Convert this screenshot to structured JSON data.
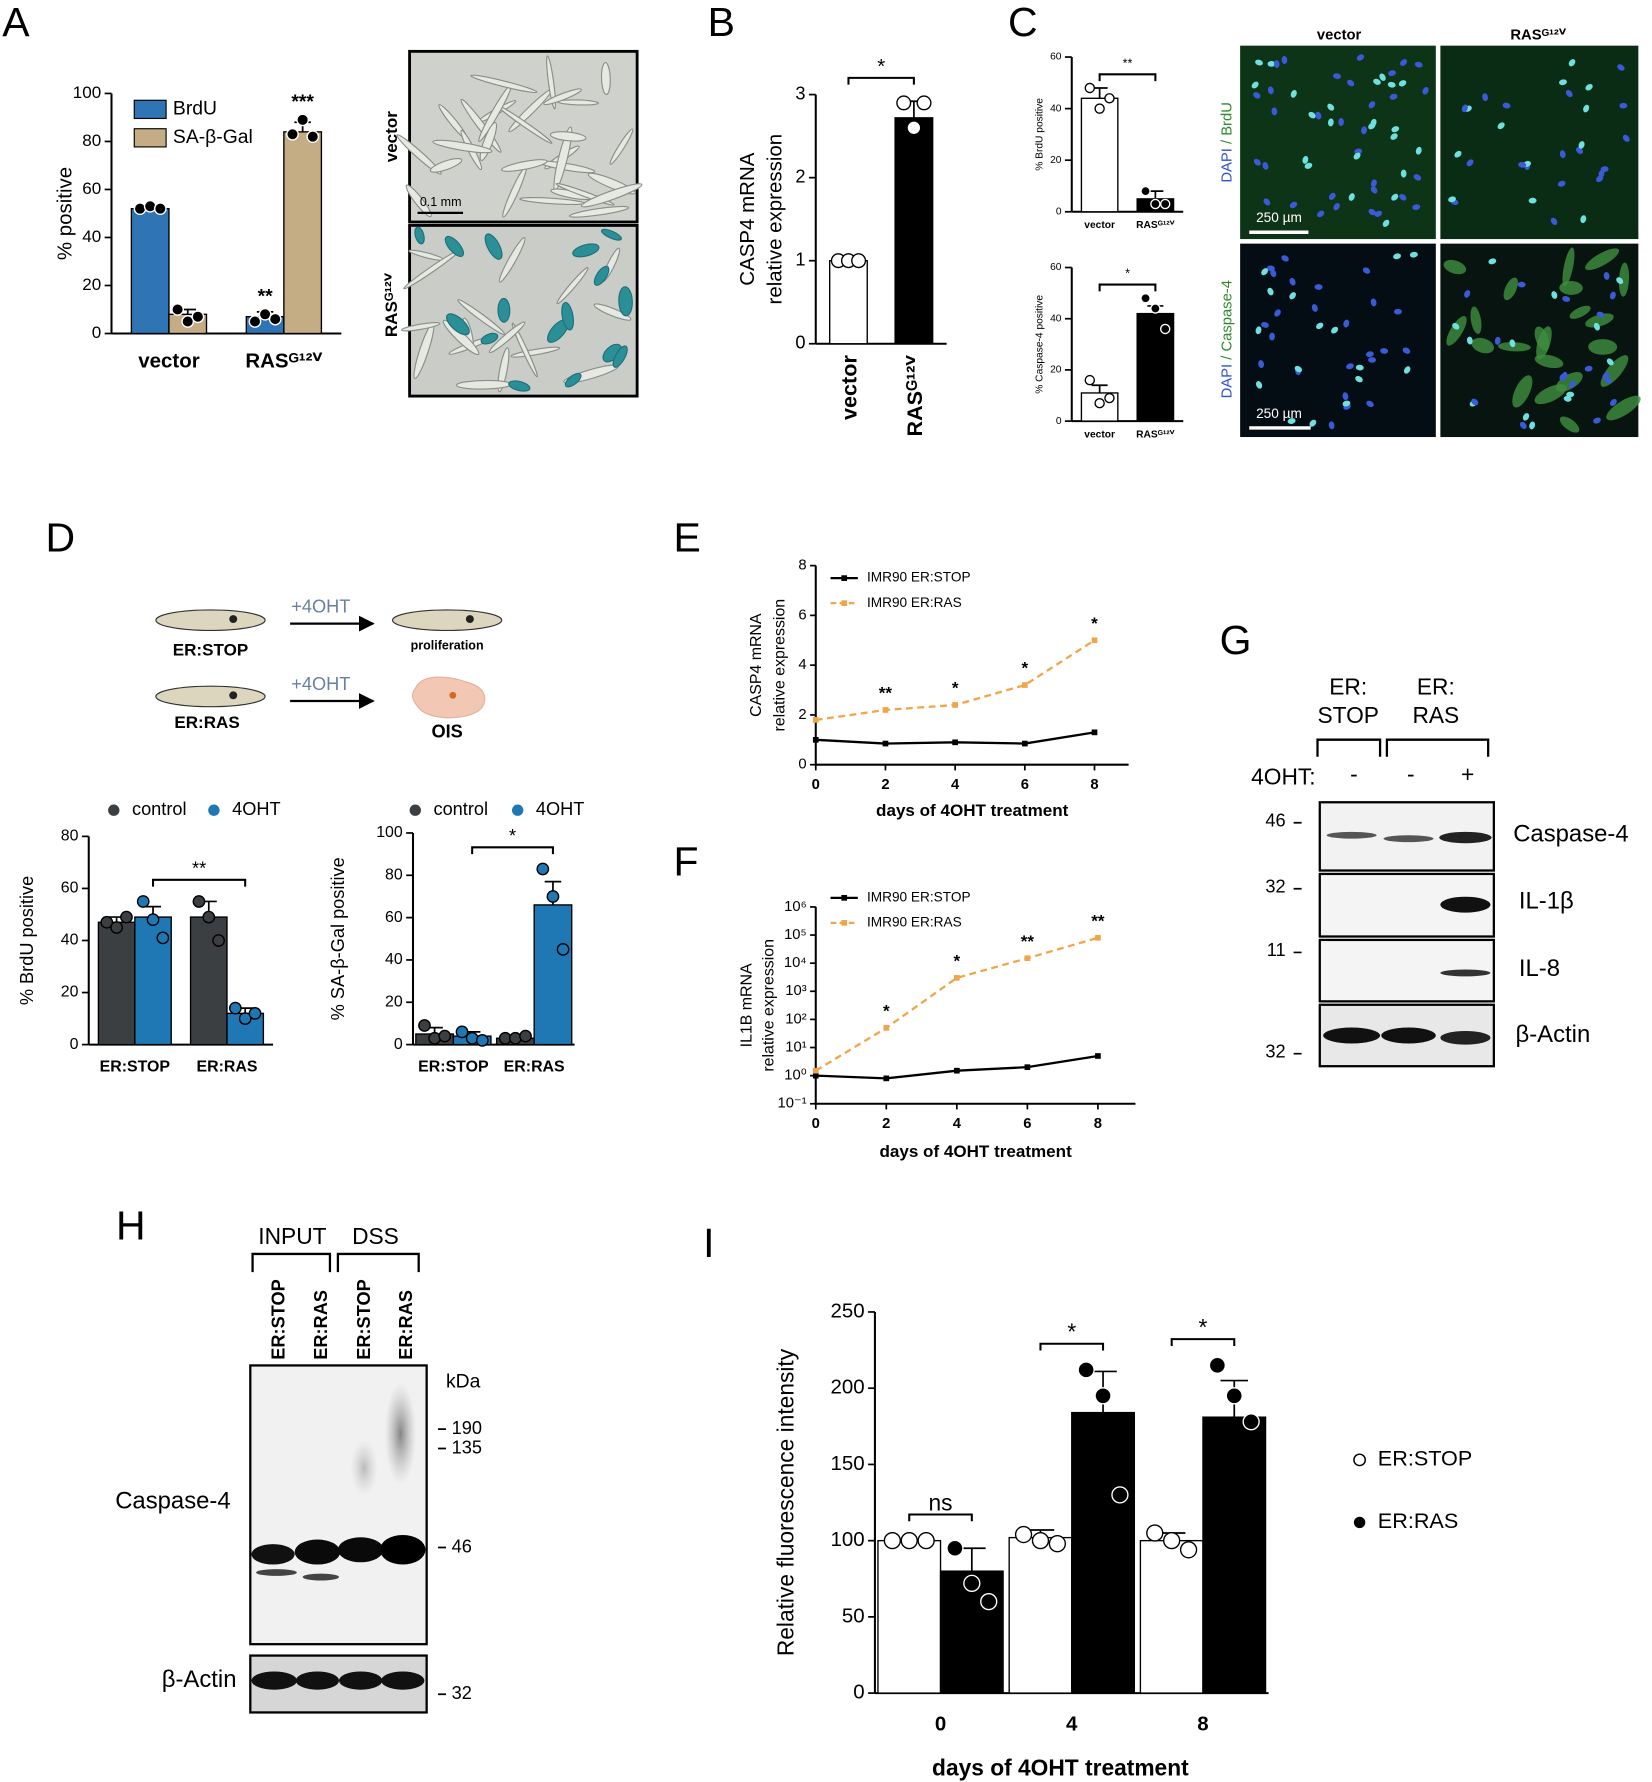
{
  "panel_labels": [
    "A",
    "B",
    "C",
    "D",
    "E",
    "F",
    "G",
    "H",
    "I"
  ],
  "micrographs_a": {
    "rows": [
      "vector",
      "RASᴳ¹²ⱽ"
    ],
    "scale": "0.1 mm"
  },
  "micrographs_c": {
    "columns": [
      "vector",
      "RASᴳ¹²ⱽ"
    ],
    "rows": [
      [
        "DAPI",
        "/ BrdU"
      ],
      [
        "DAPI",
        "/ Caspase-4"
      ]
    ],
    "scale": "250 µm"
  },
  "schematic": {
    "rows": [
      {
        "cell": "ER:STOP",
        "treatment": "+4OHT",
        "outcome": "proliferation"
      },
      {
        "cell": "ER:RAS",
        "treatment": "+4OHT",
        "outcome": "OIS"
      }
    ]
  },
  "blot_g": {
    "groups": [
      [
        "ER:",
        "STOP"
      ],
      [
        "ER:",
        "RAS"
      ]
    ],
    "treatment": "4OHT:",
    "lanes": [
      "-",
      "-",
      "+"
    ],
    "markers": [
      "46",
      "32",
      "11",
      "32"
    ],
    "proteins": [
      "Caspase-4",
      "IL-1β",
      "IL-8",
      "β-Actin"
    ]
  },
  "blot_h": {
    "groups": [
      "INPUT",
      "DSS"
    ],
    "lanes": [
      "ER:STOP",
      "ER:RAS",
      "ER:STOP",
      "ER:RAS"
    ],
    "unit": "kDa",
    "markers": [
      "190",
      "135",
      "46",
      "32"
    ],
    "proteins": [
      "Caspase-4",
      "β-Actin"
    ]
  },
  "chart_data": [
    {
      "type": "bar",
      "y_label": "% positive",
      "categories": [
        "vector",
        "RASᴳ¹²ⱽ"
      ],
      "ylim": [
        0,
        100
      ],
      "yticks": [
        0,
        20,
        40,
        60,
        80,
        100
      ],
      "legend": "top-left",
      "series": [
        {
          "name": "BrdU",
          "color": "#2f75b5",
          "point_color": "#000000",
          "values": [
            52,
            7
          ],
          "errors": [
            1,
            2
          ],
          "points": [
            [
              52,
              53,
              52
            ],
            [
              5,
              8,
              6
            ]
          ],
          "annotations": [
            null,
            "**"
          ]
        },
        {
          "name": "SA-β-Gal",
          "color": "#c4ad85",
          "point_color": "#000000",
          "values": [
            8,
            84
          ],
          "errors": [
            2,
            4
          ],
          "points": [
            [
              10,
              5,
              7
            ],
            [
              83,
              89,
              82
            ]
          ],
          "annotations": [
            null,
            "***"
          ]
        }
      ]
    },
    {
      "type": "bar",
      "y_label": [
        "CASP4 mRNA",
        "relative expression"
      ],
      "categories": [
        "vector",
        "RASᴳ¹²ⱽ"
      ],
      "values": [
        1,
        2.72
      ],
      "errors": [
        0,
        0.2
      ],
      "colors": [
        "#ffffff",
        "#000000"
      ],
      "point_colors": [
        "#ffffff",
        "#ffffff"
      ],
      "points": [
        [
          1,
          1,
          1
        ],
        [
          2.9,
          2.6,
          2.9
        ]
      ],
      "ylim": [
        0,
        3
      ],
      "yticks": [
        0,
        1,
        2,
        3
      ],
      "bracket_label": "*"
    },
    {
      "type": "bar",
      "y_label": "% BrdU positive",
      "categories": [
        "vector",
        "RASᴳ¹²ⱽ"
      ],
      "values": [
        44,
        5
      ],
      "errors": [
        4,
        3
      ],
      "colors": [
        "#ffffff",
        "#000000"
      ],
      "point_colors": [
        "#ffffff",
        "#000000"
      ],
      "points": [
        [
          48,
          40,
          44
        ],
        [
          8,
          3,
          3
        ]
      ],
      "ylim": [
        0,
        60
      ],
      "yticks": [
        0,
        20,
        40,
        60
      ],
      "bracket_label": "**"
    },
    {
      "type": "bar",
      "y_label": "% Caspase-4 positive",
      "categories": [
        "vector",
        "RASᴳ¹²ⱽ"
      ],
      "values": [
        11,
        42
      ],
      "errors": [
        3,
        3
      ],
      "colors": [
        "#ffffff",
        "#000000"
      ],
      "point_colors": [
        "#ffffff",
        "#000000"
      ],
      "points": [
        [
          16,
          7,
          9
        ],
        [
          48,
          44,
          36
        ]
      ],
      "ylim": [
        0,
        60
      ],
      "yticks": [
        0,
        20,
        40,
        60
      ],
      "bracket_label": "*"
    },
    {
      "type": "bar",
      "y_label": "% BrdU positive",
      "categories": [
        "ER:STOP",
        "ER:RAS"
      ],
      "ylim": [
        0,
        80
      ],
      "yticks": [
        0,
        20,
        40,
        60,
        80
      ],
      "legend": "top",
      "bracket_label": "**",
      "series": [
        {
          "name": "control",
          "color": "#3c3f42",
          "point_color": "#3c3f42",
          "values": [
            47,
            49
          ],
          "errors": [
            2,
            6
          ],
          "points": [
            [
              47,
              45,
              49
            ],
            [
              55,
              49,
              40
            ]
          ]
        },
        {
          "name": "4OHT",
          "color": "#1f78b4",
          "point_color": "#1f78b4",
          "values": [
            49,
            12
          ],
          "errors": [
            4,
            2
          ],
          "points": [
            [
              55,
              48,
              41
            ],
            [
              14,
              10,
              12
            ]
          ]
        }
      ]
    },
    {
      "type": "bar",
      "y_label": "% SA-β-Gal positive",
      "categories": [
        "ER:STOP",
        "ER:RAS"
      ],
      "ylim": [
        0,
        100
      ],
      "yticks": [
        0,
        20,
        40,
        60,
        80,
        100
      ],
      "legend": "top",
      "bracket_label": "*",
      "series": [
        {
          "name": "control",
          "color": "#3c3f42",
          "point_color": "#3c3f42",
          "values": [
            5,
            3
          ],
          "errors": [
            3,
            1
          ],
          "points": [
            [
              9,
              3,
              4
            ],
            [
              3,
              3,
              4
            ]
          ]
        },
        {
          "name": "4OHT",
          "color": "#1f78b4",
          "point_color": "#1f78b4",
          "values": [
            4,
            66
          ],
          "errors": [
            2,
            11
          ],
          "points": [
            [
              6,
              3,
              2
            ],
            [
              83,
              70,
              45
            ]
          ]
        }
      ]
    },
    {
      "type": "line",
      "x_label": "days of 4OHT treatment",
      "y_label": [
        "CASP4 mRNA",
        "relative expression"
      ],
      "x": [
        0,
        2,
        4,
        6,
        8
      ],
      "xlim": [
        0,
        8
      ],
      "xticks": [
        0,
        2,
        4,
        6,
        8
      ],
      "ylim": [
        0,
        8
      ],
      "yticks": [
        0,
        2,
        4,
        6,
        8
      ],
      "legend": "top-left",
      "series": [
        {
          "name": "IMR90 ER:STOP",
          "color": "#000000",
          "dash": false,
          "values": [
            1,
            0.85,
            0.9,
            0.85,
            1.3
          ]
        },
        {
          "name": "IMR90 ER:RAS",
          "color": "#f0a54a",
          "dash": true,
          "values": [
            1.8,
            2.2,
            2.4,
            3.2,
            5
          ]
        }
      ],
      "annotations": [
        null,
        "**",
        "*",
        "*",
        "*"
      ]
    },
    {
      "type": "line",
      "y_scale": "log",
      "x_label": "days of 4OHT treatment",
      "y_label": [
        "IL1B mRNA",
        "relative expression"
      ],
      "x": [
        0,
        2,
        4,
        6,
        8
      ],
      "xlim": [
        0,
        8
      ],
      "xticks": [
        0,
        2,
        4,
        6,
        8
      ],
      "ylim": [
        0.1,
        1000000
      ],
      "yticks": [
        {
          "value": 0.1,
          "label": "10⁻¹"
        },
        {
          "value": 1,
          "label": "10⁰"
        },
        {
          "value": 10,
          "label": "10¹"
        },
        {
          "value": 100,
          "label": "10²"
        },
        {
          "value": 1000,
          "label": "10³"
        },
        {
          "value": 10000,
          "label": "10⁴"
        },
        {
          "value": 100000,
          "label": "10⁵"
        },
        {
          "value": 1000000,
          "label": "10⁶"
        }
      ],
      "legend": "top-left",
      "series": [
        {
          "name": "IMR90 ER:STOP",
          "color": "#000000",
          "dash": false,
          "values": [
            1,
            0.8,
            1.5,
            2,
            5
          ]
        },
        {
          "name": "IMR90 ER:RAS",
          "color": "#f0a54a",
          "dash": true,
          "values": [
            1.5,
            50,
            3000,
            15000,
            80000
          ]
        }
      ],
      "annotations": [
        null,
        "*",
        "*",
        "**",
        "**"
      ]
    },
    {
      "type": "bar",
      "y_label": "Relative fluorescence intensity",
      "x_label": "days of 4OHT treatment",
      "categories": [
        "0",
        "4",
        "8"
      ],
      "ylim": [
        0,
        250
      ],
      "yticks": [
        0,
        50,
        100,
        150,
        200,
        250
      ],
      "legend": "right",
      "series": [
        {
          "name": "ER:STOP",
          "color": "#ffffff",
          "point_color": "#ffffff",
          "values": [
            100,
            102,
            100
          ],
          "errors": [
            0,
            5,
            5
          ],
          "points": [
            [
              100,
              100,
              100
            ],
            [
              104,
              100,
              98
            ],
            [
              105,
              100,
              94
            ]
          ]
        },
        {
          "name": "ER:RAS",
          "color": "#000000",
          "point_color": "#000000",
          "values": [
            80,
            184,
            181
          ],
          "errors": [
            15,
            27,
            24
          ],
          "points": [
            [
              95,
              72,
              60
            ],
            [
              212,
              195,
              130
            ],
            [
              215,
              195,
              178
            ]
          ]
        }
      ],
      "bracket_labels": [
        "ns",
        "*",
        "*"
      ]
    }
  ]
}
